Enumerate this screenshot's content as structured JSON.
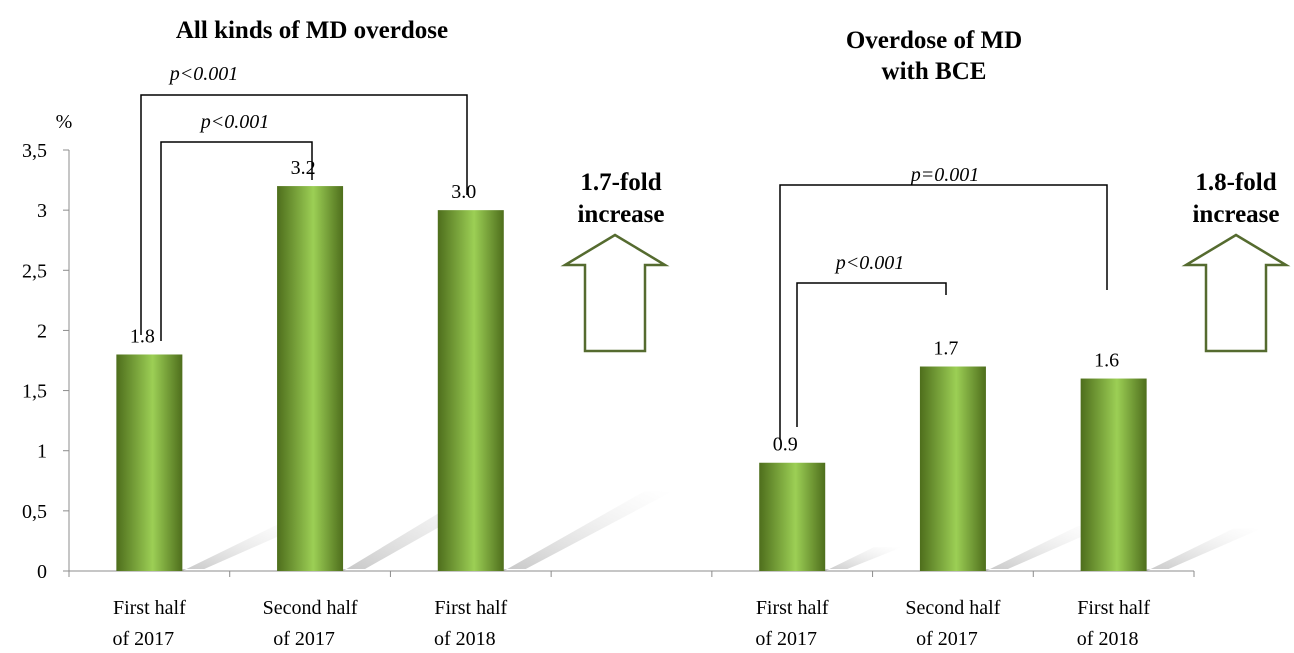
{
  "chart_data": {
    "type": "bar",
    "ylabel": "%",
    "ylim": [
      0,
      3.5
    ],
    "ytick_labels": [
      "0",
      "0,5",
      "1",
      "1,5",
      "2",
      "2,5",
      "3",
      "3,5"
    ],
    "categories": [
      [
        "First half",
        "of 2017"
      ],
      [
        "Second half",
        "of 2017"
      ],
      [
        "First half",
        "of 2018"
      ],
      [
        "",
        ""
      ],
      [
        "First half",
        "of 2017"
      ],
      [
        "Second half",
        "of 2017"
      ],
      [
        "First half",
        "of 2018"
      ]
    ],
    "groups": [
      {
        "title": [
          "All kinds of MD overdose"
        ],
        "values": [
          1.8,
          3.2,
          3.0
        ],
        "value_labels": [
          "1.8",
          "3.2",
          "3.0"
        ],
        "comparisons": [
          {
            "from": 0,
            "to": 2,
            "label": "p<0.001"
          },
          {
            "from": 0,
            "to": 1,
            "label": "p<0.001"
          }
        ],
        "fold_change": [
          "1.7-fold",
          "increase"
        ]
      },
      {
        "title": [
          "Overdose of MD",
          "with BCE"
        ],
        "values": [
          0.9,
          1.7,
          1.6
        ],
        "value_labels": [
          "0.9",
          "1.7",
          "1.6"
        ],
        "comparisons": [
          {
            "from": 0,
            "to": 2,
            "label": "p=0.001"
          },
          {
            "from": 0,
            "to": 1,
            "label": "p<0.001"
          }
        ],
        "fold_change": [
          "1.8-fold",
          "increase"
        ]
      }
    ],
    "colors": {
      "bar_dark": "#4e6e1c",
      "bar_light": "#9ccf55",
      "arrow": "#556b2f",
      "shadow": "#c8c8c8"
    }
  }
}
